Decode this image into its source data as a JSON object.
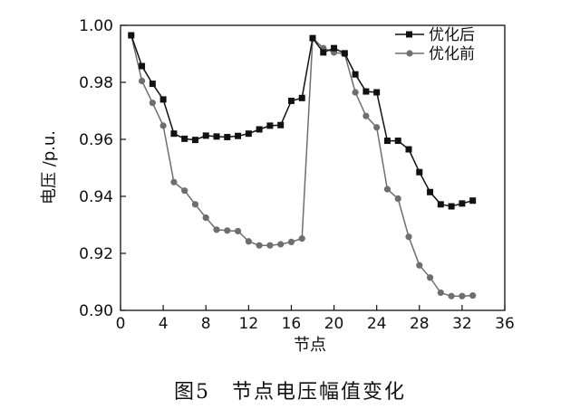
{
  "caption": "图5　节点电压幅值变化",
  "chart_data": {
    "type": "line",
    "title": "",
    "xlabel": "节点",
    "ylabel": "电压 /p.u.",
    "xlim": [
      0,
      36
    ],
    "ylim": [
      0.9,
      1.0
    ],
    "x_ticks": [
      0,
      4,
      8,
      12,
      16,
      20,
      24,
      28,
      32,
      36
    ],
    "x_tick_labels": [
      "0",
      "4",
      "8",
      "12",
      "16",
      "20",
      "24",
      "28",
      "32",
      "36"
    ],
    "y_ticks": [
      0.9,
      0.92,
      0.94,
      0.96,
      0.98,
      1.0
    ],
    "y_tick_labels": [
      "0.90",
      "0.92",
      "0.94",
      "0.96",
      "0.98",
      "1.00"
    ],
    "grid": false,
    "legend_position": "top-right",
    "x": [
      1,
      2,
      3,
      4,
      5,
      6,
      7,
      8,
      9,
      10,
      11,
      12,
      13,
      14,
      15,
      16,
      17,
      18,
      19,
      20,
      21,
      22,
      23,
      24,
      25,
      26,
      27,
      28,
      29,
      30,
      31,
      32,
      33
    ],
    "series": [
      {
        "name": "优化后",
        "marker": "square",
        "color": "#111111",
        "values": [
          0.9965,
          0.9857,
          0.9795,
          0.974,
          0.962,
          0.9602,
          0.9598,
          0.9613,
          0.961,
          0.9608,
          0.9612,
          0.962,
          0.9635,
          0.9648,
          0.965,
          0.9735,
          0.9745,
          0.9955,
          0.9905,
          0.992,
          0.9902,
          0.9828,
          0.9768,
          0.9765,
          0.9595,
          0.9595,
          0.9565,
          0.9485,
          0.9415,
          0.9372,
          0.9365,
          0.9375,
          0.9385
        ]
      },
      {
        "name": "优化前",
        "marker": "circle",
        "color": "#6e6e6e",
        "values": [
          0.9965,
          0.9805,
          0.9728,
          0.9648,
          0.945,
          0.942,
          0.9372,
          0.9325,
          0.9283,
          0.928,
          0.9278,
          0.9242,
          0.9228,
          0.9228,
          0.9232,
          0.924,
          0.9252,
          0.9955,
          0.992,
          0.9905,
          0.99,
          0.9765,
          0.9682,
          0.9642,
          0.9425,
          0.9392,
          0.9258,
          0.9158,
          0.9115,
          0.9062,
          0.905,
          0.905,
          0.9052
        ]
      }
    ]
  }
}
